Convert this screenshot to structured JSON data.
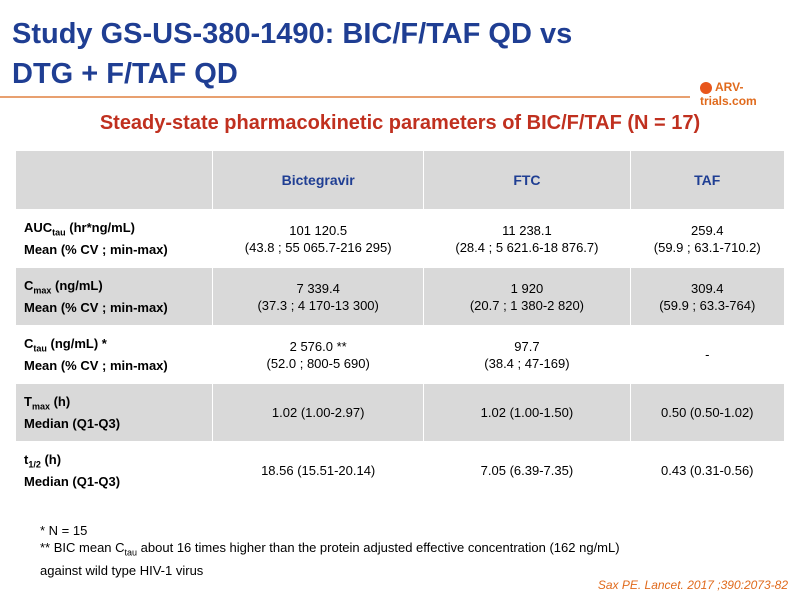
{
  "header": {
    "title_lines": [
      "Study GS-US-380-1490: BIC/F/TAF QD vs",
      "DTG + F/TAF QD"
    ],
    "logo": "ARV-trials.com"
  },
  "subtitle": "Steady-state pharmacokinetic parameters of BIC/F/TAF (N = 17)",
  "table": {
    "columns": [
      "Bictegravir",
      "FTC",
      "TAF"
    ],
    "rows": [
      {
        "label": {
          "main": "AUC",
          "sub": "tau",
          "rest": " (hr*ng/mL)",
          "line2": "Mean (% CV ; min-max)"
        },
        "cells": [
          [
            "101 120.5",
            "(43.8 ; 55 065.7-216 295)"
          ],
          [
            "11 238.1",
            "(28.4 ; 5 621.6-18 876.7)"
          ],
          [
            "259.4",
            "(59.9 ; 63.1-710.2)"
          ]
        ]
      },
      {
        "label": {
          "main": "C",
          "sub": "max",
          "rest": " (ng/mL)",
          "line2": "Mean (% CV ; min-max)"
        },
        "cells": [
          [
            "7 339.4",
            "(37.3 ; 4 170-13 300)"
          ],
          [
            "1 920",
            "(20.7 ; 1 380-2 820)"
          ],
          [
            "309.4",
            "(59.9 ; 63.3-764)"
          ]
        ]
      },
      {
        "label": {
          "main": "C",
          "sub": "tau",
          "rest": " (ng/mL) *",
          "line2": "Mean (% CV ; min-max)"
        },
        "cells": [
          [
            "2 576.0 **",
            "(52.0 ; 800-5 690)"
          ],
          [
            "97.7",
            "(38.4 ; 47-169)"
          ],
          [
            "-"
          ]
        ]
      },
      {
        "label": {
          "main": "T",
          "sub": "max",
          "rest": " (h)",
          "line2": "Median (Q1-Q3)"
        },
        "cells": [
          [
            "1.02 (1.00-2.97)"
          ],
          [
            "1.02 (1.00-1.50)"
          ],
          [
            "0.50 (0.50-1.02)"
          ]
        ]
      },
      {
        "label": {
          "main": "t",
          "sub": "1/2",
          "rest": " (h)",
          "line2": "Median (Q1-Q3)"
        },
        "cells": [
          [
            "18.56 (15.51-20.14)"
          ],
          [
            "7.05 (6.39-7.35)"
          ],
          [
            "0.43 (0.31-0.56)"
          ]
        ]
      }
    ]
  },
  "footnotes": {
    "note1": "* N = 15",
    "note2": {
      "before": "** BIC mean C",
      "sub": "tau",
      "after": " about 16 times higher than the protein adjusted effective concentration (162 ng/mL)",
      "line2": "against wild type HIV-1 virus"
    }
  },
  "citation": "Sax PE. Lancet. 2017 ;390:2073-82"
}
